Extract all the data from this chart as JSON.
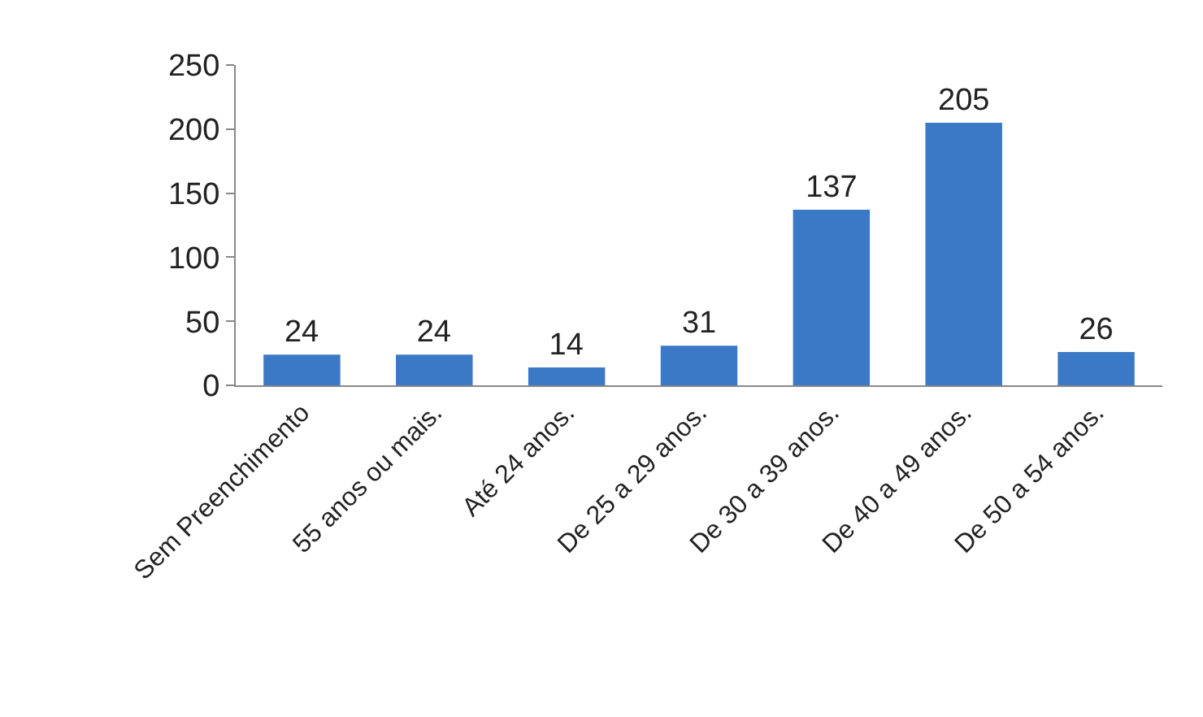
{
  "chart_data": {
    "type": "bar",
    "categories": [
      "Sem Preenchimento",
      "55 anos ou mais.",
      "Até 24 anos.",
      "De 25 a 29 anos.",
      "De 30 a 39 anos.",
      "De 40 a 49 anos.",
      "De 50 a 54 anos."
    ],
    "values": [
      24,
      24,
      14,
      31,
      137,
      205,
      26
    ],
    "color": "#3b78c6",
    "ylim": [
      0,
      250
    ],
    "yticks": [
      0,
      50,
      100,
      150,
      200,
      250
    ],
    "data_labels": true
  }
}
